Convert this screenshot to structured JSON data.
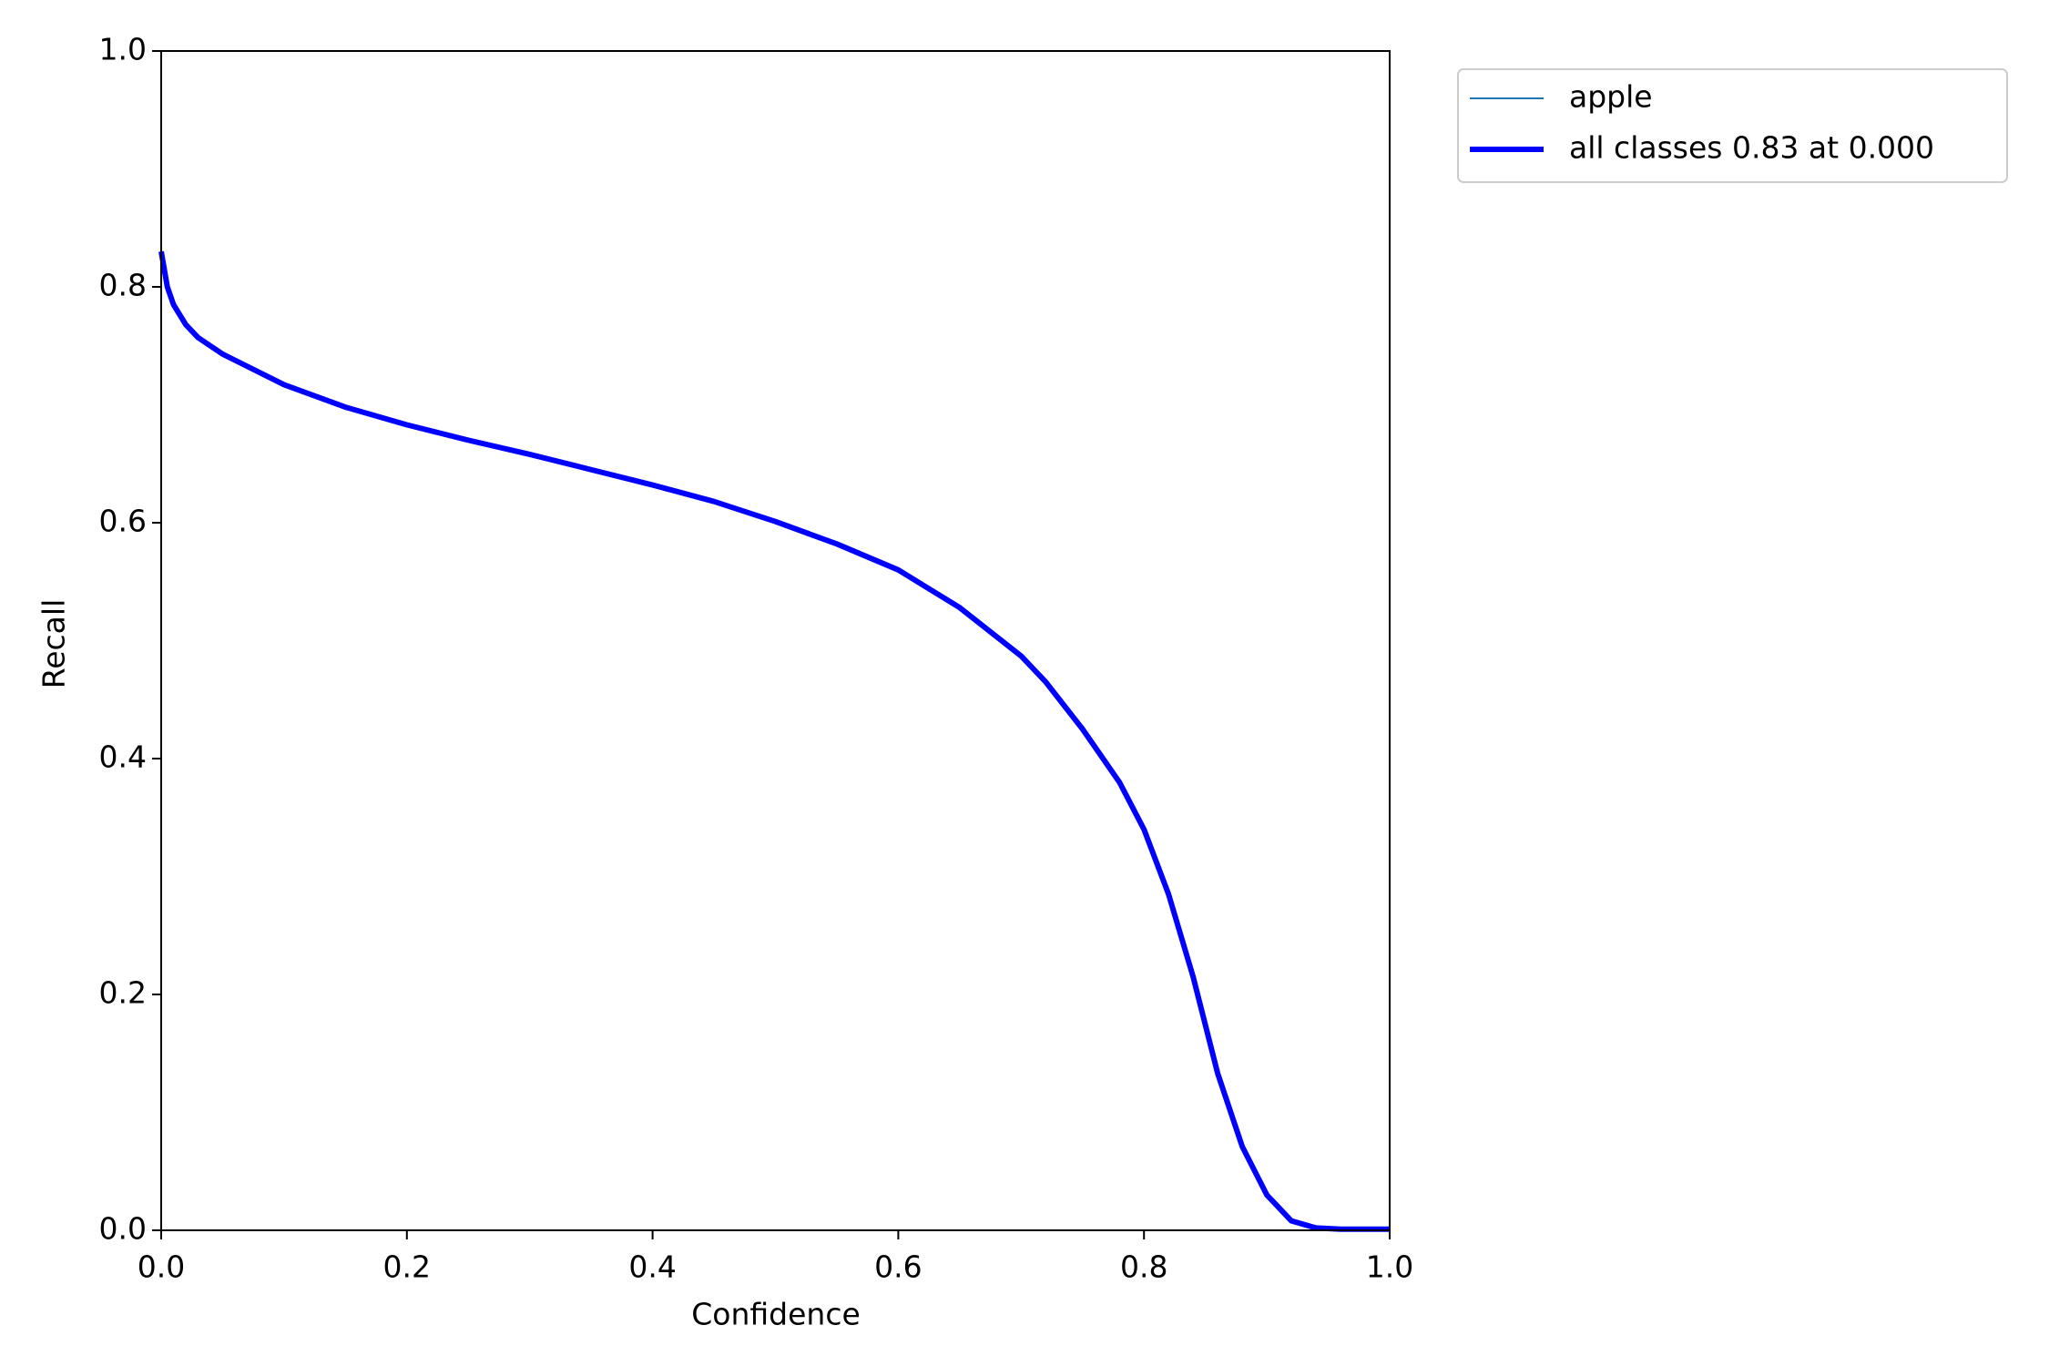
{
  "chart_data": {
    "type": "line",
    "x_label": "Confidence",
    "y_label": "Recall",
    "x": [
      0,
      0.005,
      0.01,
      0.02,
      0.03,
      0.05,
      0.1,
      0.15,
      0.2,
      0.25,
      0.3,
      0.35,
      0.4,
      0.45,
      0.5,
      0.55,
      0.6,
      0.65,
      0.7,
      0.72,
      0.75,
      0.78,
      0.8,
      0.82,
      0.84,
      0.86,
      0.88,
      0.9,
      0.92,
      0.94,
      0.96,
      1.0
    ],
    "series": [
      {
        "name": "apple",
        "color": "#1f77b4",
        "values": [
          0.83,
          0.8,
          0.785,
          0.768,
          0.757,
          0.743,
          0.717,
          0.698,
          0.683,
          0.67,
          0.658,
          0.645,
          0.632,
          0.618,
          0.601,
          0.582,
          0.56,
          0.528,
          0.487,
          0.465,
          0.425,
          0.38,
          0.34,
          0.285,
          0.215,
          0.133,
          0.071,
          0.03,
          0.008,
          0.002,
          0.001,
          0.001
        ]
      },
      {
        "name": "all classes 0.83 at 0.000",
        "color": "#0000ff",
        "values": [
          0.83,
          0.8,
          0.785,
          0.768,
          0.757,
          0.743,
          0.717,
          0.698,
          0.683,
          0.67,
          0.658,
          0.645,
          0.632,
          0.618,
          0.601,
          0.582,
          0.56,
          0.528,
          0.487,
          0.465,
          0.425,
          0.38,
          0.34,
          0.285,
          0.215,
          0.133,
          0.071,
          0.03,
          0.008,
          0.002,
          0.001,
          0.001
        ]
      }
    ],
    "xlim": [
      0,
      1
    ],
    "ylim": [
      0,
      1
    ],
    "xticks": [
      {
        "value": 0,
        "label": "0.0"
      },
      0.2,
      0.4,
      0.6,
      0.8,
      {
        "value": 1,
        "label": "1.0"
      }
    ],
    "yticks": [
      {
        "value": 0,
        "label": "0.0"
      },
      0.2,
      0.4,
      0.6,
      0.8,
      {
        "value": 1,
        "label": "1.0"
      }
    ],
    "legend": "outside-upper-right",
    "grid": false
  }
}
